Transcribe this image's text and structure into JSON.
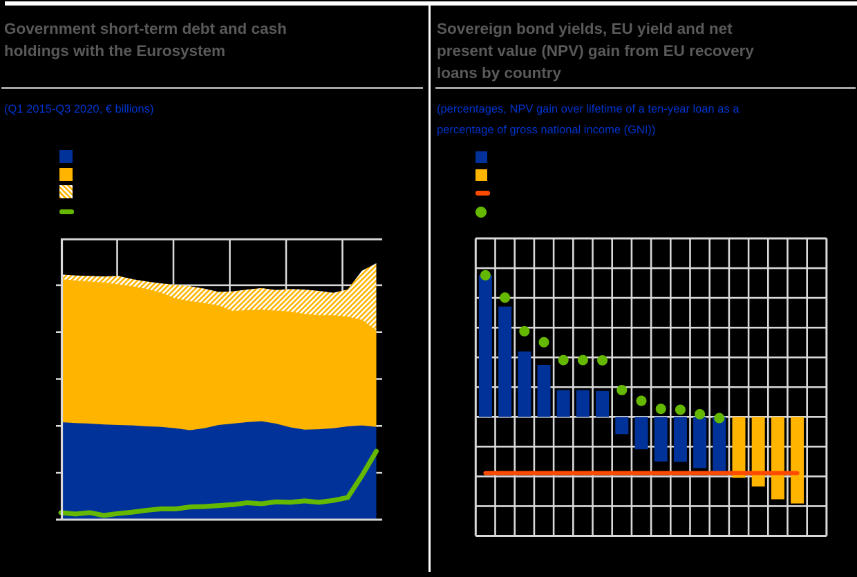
{
  "figure": {
    "background": "#000000",
    "top_strip_color": "#ffffff",
    "panel_divider_color": "#ffffff",
    "title_rule_color": "#a6a6a6"
  },
  "colors": {
    "title_gray": "#595959",
    "subtitle_blue": "#0033cc",
    "grid": "#d9d9d9",
    "blue": "#003299",
    "yellow": "#ffb400",
    "green": "#65b800",
    "orange": "#ff4b00",
    "white": "#ffffff"
  },
  "left_panel": {
    "title_lines": [
      "Government short-term debt and cash",
      "holdings with the Eurosystem"
    ],
    "subtitle": "(Q1 2015-Q3 2020, € billions)",
    "legend_note": "legend label text not visible (black text on black background)",
    "legend": [
      {
        "swatch": "square",
        "color": "#003299",
        "label": ""
      },
      {
        "swatch": "square",
        "color": "#ffb400",
        "label": ""
      },
      {
        "swatch": "hatched-square",
        "color": "#ffb400",
        "label": ""
      },
      {
        "swatch": "line",
        "color": "#65b800",
        "label": ""
      }
    ]
  },
  "right_panel": {
    "title_lines": [
      "Sovereign bond yields, EU yield and net",
      "present value (NPV) gain from EU recovery",
      "loans by country"
    ],
    "subtitle_lines": [
      "(percentages, NPV gain over lifetime of a ten-year loan as a",
      "percentage of gross national income (GNI))"
    ],
    "legend_note": "legend label text not visible (black text on black background)",
    "legend": [
      {
        "swatch": "square",
        "color": "#003299",
        "label": ""
      },
      {
        "swatch": "square",
        "color": "#ffb400",
        "label": ""
      },
      {
        "swatch": "line",
        "color": "#ff4b00",
        "label": ""
      },
      {
        "swatch": "dot",
        "color": "#65b800",
        "label": ""
      }
    ]
  },
  "chart_data": [
    {
      "type": "area",
      "panel": "left",
      "title": "Government short-term debt and cash holdings with the Eurosystem",
      "subtitle": "(Q1 2015-Q3 2020, € billions)",
      "note": "stacked area chart with green overlay line; axis tick labels are not visible in the image, so values are cumulative stack-top levels estimated in y-gridline units (0 = x-axis, 6 = top border)",
      "x_axis": {
        "description": "quarterly, Q1 2015 to Q3 2020",
        "points": 23,
        "tick_labels_visible": false,
        "vertical_gridlines": 5
      },
      "y_axis": {
        "range_units": [
          0,
          6
        ],
        "gridline_rows": 6,
        "tick_labels_visible": false
      },
      "grid_on": true,
      "legend_position": "top-left",
      "series": [
        {
          "name": "blue-area-cumulative-top",
          "style": "area",
          "color": "#003299",
          "values": [
            2.08,
            2.06,
            2.05,
            2.03,
            2.02,
            2.01,
            1.99,
            1.98,
            1.95,
            1.91,
            1.95,
            2.02,
            2.05,
            2.08,
            2.1,
            2.05,
            1.97,
            1.92,
            1.93,
            1.95,
            1.99,
            2.01,
            1.98
          ]
        },
        {
          "name": "amber-area-cumulative-top",
          "style": "area",
          "color": "#ffb400",
          "values": [
            5.13,
            5.1,
            5.08,
            5.06,
            5.02,
            4.98,
            4.92,
            4.84,
            4.72,
            4.66,
            4.62,
            4.57,
            4.45,
            4.47,
            4.48,
            4.46,
            4.44,
            4.39,
            4.36,
            4.36,
            4.33,
            4.26,
            4.04
          ]
        },
        {
          "name": "hatched-area-cumulative-top",
          "style": "area",
          "pattern": "diagonal-hatch",
          "color": "#ffb400",
          "values": [
            5.23,
            5.21,
            5.2,
            5.19,
            5.2,
            5.13,
            5.08,
            5.04,
            5.01,
            4.98,
            4.93,
            4.86,
            4.87,
            4.91,
            4.94,
            4.9,
            4.92,
            4.91,
            4.88,
            4.84,
            4.91,
            5.31,
            5.47
          ]
        },
        {
          "name": "green-line",
          "style": "line",
          "color": "#65b800",
          "values": [
            0.15,
            0.12,
            0.15,
            0.09,
            0.13,
            0.16,
            0.2,
            0.23,
            0.23,
            0.27,
            0.28,
            0.3,
            0.32,
            0.36,
            0.34,
            0.38,
            0.37,
            0.4,
            0.37,
            0.41,
            0.47,
            0.94,
            1.46
          ]
        }
      ]
    },
    {
      "type": "bar",
      "panel": "right",
      "title": "Sovereign bond yields, EU yield and net present value (NPV) gain from EU recovery loans by country",
      "subtitle": "(percentages, NPV gain over lifetime of a ten-year loan as a percentage of gross national income (GNI))",
      "note": "17 country bars sorted descending plus one empty column; category and axis tick labels are not visible in the image, so values are estimated in y-gridline units (zero line = 6th gridline from top)",
      "x_axis": {
        "columns": 18,
        "bars": 17,
        "tick_labels_visible": false
      },
      "y_axis": {
        "range_units": [
          -4,
          6
        ],
        "zero_gridline_from_top": 6,
        "gridline_rows": 10,
        "tick_labels_visible": false
      },
      "grid_on": true,
      "legend_position": "top-left",
      "bars": [
        {
          "column": 1,
          "value": 4.76,
          "color": "blue"
        },
        {
          "column": 2,
          "value": 3.71,
          "color": "blue"
        },
        {
          "column": 3,
          "value": 2.2,
          "color": "blue"
        },
        {
          "column": 4,
          "value": 1.75,
          "color": "blue"
        },
        {
          "column": 5,
          "value": 0.9,
          "color": "blue"
        },
        {
          "column": 6,
          "value": 0.9,
          "color": "blue"
        },
        {
          "column": 7,
          "value": 0.87,
          "color": "blue"
        },
        {
          "column": 8,
          "value": -0.58,
          "color": "blue"
        },
        {
          "column": 9,
          "value": -1.09,
          "color": "blue"
        },
        {
          "column": 10,
          "value": -1.5,
          "color": "blue"
        },
        {
          "column": 11,
          "value": -1.51,
          "color": "blue"
        },
        {
          "column": 12,
          "value": -1.72,
          "color": "blue"
        },
        {
          "column": 13,
          "value": -1.9,
          "color": "blue"
        },
        {
          "column": 14,
          "value": -2.05,
          "color": "yellow"
        },
        {
          "column": 15,
          "value": -2.34,
          "color": "yellow"
        },
        {
          "column": 16,
          "value": -2.77,
          "color": "yellow"
        },
        {
          "column": 17,
          "value": -2.91,
          "color": "yellow"
        }
      ],
      "dots": {
        "name": "green-dots",
        "color": "#65b800",
        "start_column": 1,
        "values": [
          4.76,
          4.01,
          2.88,
          2.51,
          1.91,
          1.91,
          1.9,
          0.9,
          0.54,
          0.27,
          0.24,
          0.09,
          -0.04
        ]
      },
      "eu_line": {
        "name": "eu-yield-line",
        "color": "#ff4b00",
        "value": -1.89,
        "from_column": 1,
        "to_column": 17
      }
    }
  ]
}
